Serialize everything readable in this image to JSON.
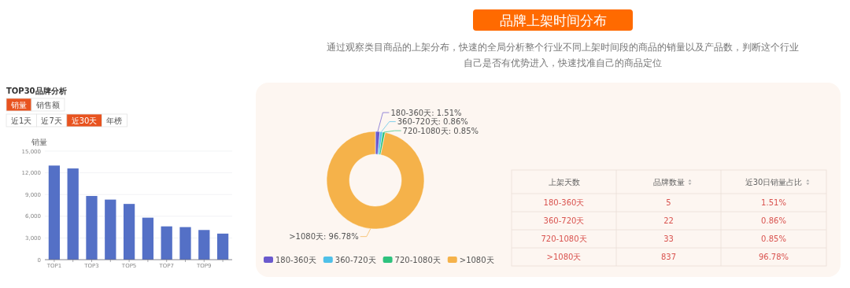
{
  "chart_data": [
    {
      "type": "bar",
      "title": "TOP30品牌分析",
      "annotations": [
        "销量",
        "销售额",
        "近1天",
        "近7天",
        "近30天",
        "年榜"
      ],
      "ylabel": "销量",
      "categories": [
        "TOP1",
        null,
        "TOP3",
        null,
        "TOP5",
        null,
        "TOP7",
        null,
        "TOP9",
        null
      ],
      "values": [
        13000,
        12600,
        8800,
        8300,
        7700,
        5800,
        4600,
        4500,
        4100,
        3600
      ],
      "color": "#5470c6",
      "ylim": [
        0,
        15000
      ],
      "yticks": [
        0,
        {
          "value": 3000,
          "label": "3,000"
        },
        {
          "value": 6000,
          "label": "6,000"
        },
        {
          "value": 9000,
          "label": "9,000"
        },
        {
          "value": 12000,
          "label": "12,000"
        },
        {
          "value": 15000,
          "label": "15,000"
        }
      ],
      "grid": "y"
    },
    {
      "type": "donut",
      "title": "品牌上架时间分布",
      "subtitle": "通过观察类目商品的上架分布，快速的全局分析整个行业不同上架时间段的商品的销量以及产品数，判断这个行业自己是否有优势进入，快速找准自己的商品定位",
      "categories": [
        "180-360天",
        "360-720天",
        "720-1080天",
        ">1080天"
      ],
      "values": [
        1.51,
        0.86,
        0.85,
        96.78
      ],
      "colors": [
        "#6a5acd",
        "#4fc0e8",
        "#2ec27e",
        "#f5b24a"
      ],
      "value_labels": [
        "180-360天: 1.51%",
        "360-720天: 0.86%",
        "720-1080天: 0.85%",
        ">1080天: 96.78%"
      ],
      "legend": "bottom"
    },
    {
      "type": "other",
      "annotations": [
        "上架天数",
        "品牌数量",
        "近30日销量占比",
        "180-360天",
        "5",
        "1.51%",
        "360-720天",
        "22",
        "0.86%",
        "720-1080天",
        "33",
        "0.85%",
        ">1080天",
        "837",
        "96.78%"
      ]
    }
  ]
}
